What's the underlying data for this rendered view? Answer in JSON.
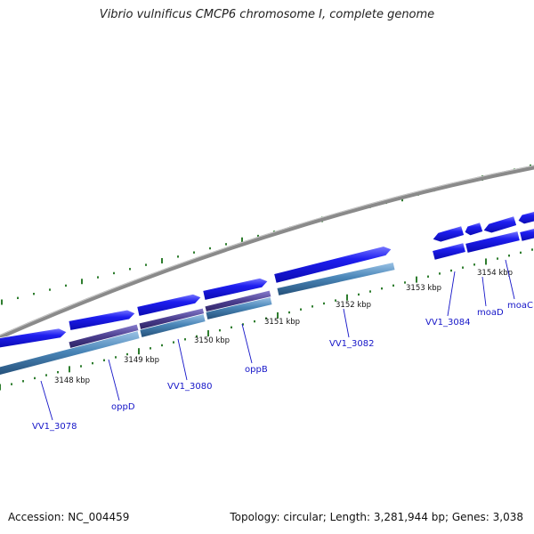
{
  "title": "Vibrio vulnificus CMCP6 chromosome I, complete genome",
  "footer": {
    "accession": "Accession: NC_004459",
    "summary": "Topology: circular; Length: 3,281,944 bp; Genes: 3,038"
  },
  "colors": {
    "backbone": "#8a8a8a",
    "gene_forward": "#1414e6",
    "cds_lower": "#4a86b8",
    "operon_purple": "#4b3e8e",
    "tick": "#2e7d2e",
    "label_blue": "#1515c8"
  },
  "ticks": [
    "3148 kbp",
    "3149 kbp",
    "3150 kbp",
    "3151 kbp",
    "3152 kbp",
    "3153 kbp",
    "3154 kbp"
  ],
  "genes": [
    "VV1_3078",
    "oppD",
    "VV1_3080",
    "oppB",
    "VV1_3082",
    "VV1_3084",
    "moaD",
    "moaC"
  ]
}
